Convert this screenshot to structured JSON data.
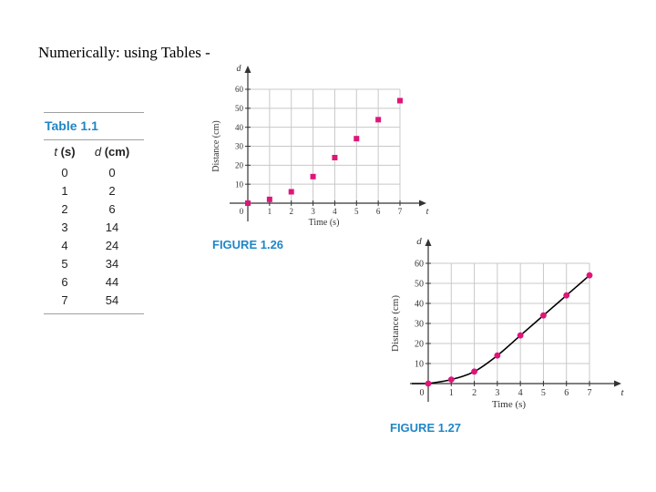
{
  "heading": "Numerically: using Tables -",
  "table": {
    "title": "Table 1.1",
    "col_t_var": "t",
    "col_t_unit": "(s)",
    "col_d_var": "d",
    "col_d_unit": "(cm)",
    "rows": [
      {
        "t": "0",
        "d": "0"
      },
      {
        "t": "1",
        "d": "2"
      },
      {
        "t": "2",
        "d": "6"
      },
      {
        "t": "3",
        "d": "14"
      },
      {
        "t": "4",
        "d": "24"
      },
      {
        "t": "5",
        "d": "34"
      },
      {
        "t": "6",
        "d": "44"
      },
      {
        "t": "7",
        "d": "54"
      }
    ]
  },
  "chart_data": [
    {
      "type": "scatter",
      "caption": "FIGURE 1.26",
      "xlabel": "Time (s)",
      "ylabel": "Distance (cm)",
      "x_axis_var": "t",
      "y_axis_var": "d",
      "origin_label": "0",
      "xlim": [
        0,
        7
      ],
      "ylim": [
        0,
        60
      ],
      "x_ticks": [
        "1",
        "2",
        "3",
        "4",
        "5",
        "6",
        "7"
      ],
      "y_ticks": [
        "10",
        "20",
        "30",
        "40",
        "50",
        "60"
      ],
      "grid": true,
      "connect_points": false,
      "marker_color": "#e0157a",
      "x": [
        0,
        1,
        2,
        3,
        4,
        5,
        6,
        7
      ],
      "y": [
        0,
        2,
        6,
        14,
        24,
        34,
        44,
        54
      ]
    },
    {
      "type": "line",
      "caption": "FIGURE 1.27",
      "xlabel": "Time (s)",
      "ylabel": "Distance (cm)",
      "x_axis_var": "t",
      "y_axis_var": "d",
      "origin_label": "0",
      "xlim": [
        0,
        7
      ],
      "ylim": [
        0,
        60
      ],
      "x_ticks": [
        "1",
        "2",
        "3",
        "4",
        "5",
        "6",
        "7"
      ],
      "y_ticks": [
        "10",
        "20",
        "30",
        "40",
        "50",
        "60"
      ],
      "grid": true,
      "connect_points": true,
      "marker_color": "#e0157a",
      "line_color": "#000000",
      "x": [
        0,
        1,
        2,
        3,
        4,
        5,
        6,
        7
      ],
      "y": [
        0,
        2,
        6,
        14,
        24,
        34,
        44,
        54
      ]
    }
  ]
}
